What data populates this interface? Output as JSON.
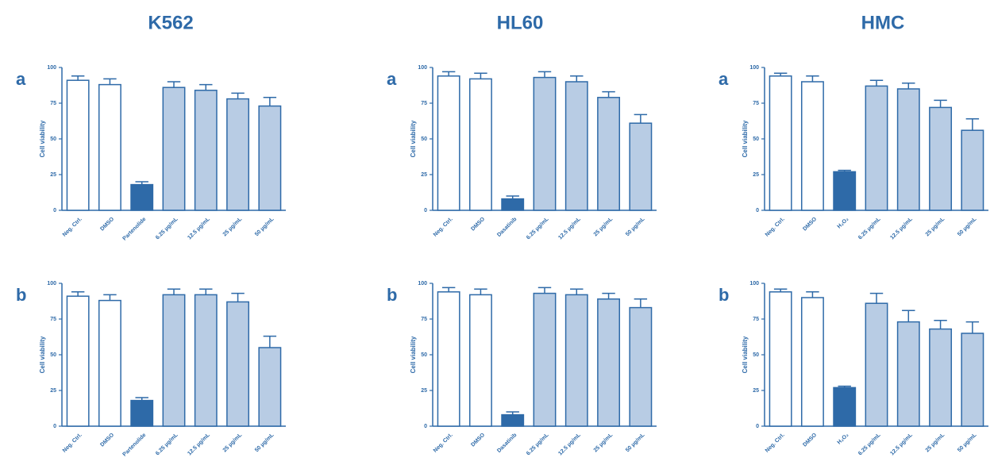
{
  "column_titles": [
    "K562",
    "HL60",
    "HMC"
  ],
  "chart_data": [
    {
      "type": "bar",
      "label": "a",
      "ylabel": "Cell viability",
      "categories": [
        "Neg. Ctrl.",
        "DMSO",
        "Partenolide",
        "6.25 µg/mL",
        "12.5 µg/mL",
        "25 µg/mL",
        "50 µg/mL"
      ],
      "values": [
        91,
        88,
        18,
        86,
        84,
        78,
        73
      ],
      "errors": [
        3,
        4,
        2,
        4,
        4,
        4,
        6
      ],
      "colors": [
        "#ffffff",
        "#ffffff",
        "#2e6aa8",
        "#b8cce4",
        "#b8cce4",
        "#b8cce4",
        "#b8cce4"
      ],
      "ylim": [
        0,
        100
      ],
      "yticks": [
        0,
        25,
        50,
        75,
        100
      ]
    },
    {
      "type": "bar",
      "label": "a",
      "ylabel": "Cell viability",
      "categories": [
        "Neg. Ctrl.",
        "DMSO",
        "Dasatinib",
        "6.25 µg/mL",
        "12.5 µg/mL",
        "25 µg/mL",
        "50 µg/mL"
      ],
      "values": [
        94,
        92,
        8,
        93,
        90,
        79,
        61
      ],
      "errors": [
        3,
        4,
        2,
        4,
        4,
        4,
        6
      ],
      "colors": [
        "#ffffff",
        "#ffffff",
        "#2e6aa8",
        "#b8cce4",
        "#b8cce4",
        "#b8cce4",
        "#b8cce4"
      ],
      "ylim": [
        0,
        100
      ],
      "yticks": [
        0,
        25,
        50,
        75,
        100
      ]
    },
    {
      "type": "bar",
      "label": "a",
      "ylabel": "Cell viability",
      "categories": [
        "Neg. Ctrl.",
        "DMSO",
        "H₂O₂",
        "6.25 µg/mL",
        "12.5 µg/mL",
        "25 µg/mL",
        "50 µg/mL"
      ],
      "values": [
        94,
        90,
        27,
        87,
        85,
        72,
        56
      ],
      "errors": [
        2,
        4,
        1,
        4,
        4,
        5,
        8
      ],
      "colors": [
        "#ffffff",
        "#ffffff",
        "#2e6aa8",
        "#b8cce4",
        "#b8cce4",
        "#b8cce4",
        "#b8cce4"
      ],
      "ylim": [
        0,
        100
      ],
      "yticks": [
        0,
        25,
        50,
        75,
        100
      ]
    },
    {
      "type": "bar",
      "label": "b",
      "ylabel": "Cell viability",
      "categories": [
        "Neg. Ctrl.",
        "DMSO",
        "Partenolide",
        "6.25 µg/mL",
        "12.5 µg/mL",
        "25 µg/mL",
        "50 µg/mL"
      ],
      "values": [
        91,
        88,
        18,
        92,
        92,
        87,
        55
      ],
      "errors": [
        3,
        4,
        2,
        4,
        4,
        6,
        8
      ],
      "colors": [
        "#ffffff",
        "#ffffff",
        "#2e6aa8",
        "#b8cce4",
        "#b8cce4",
        "#b8cce4",
        "#b8cce4"
      ],
      "ylim": [
        0,
        100
      ],
      "yticks": [
        0,
        25,
        50,
        75,
        100
      ]
    },
    {
      "type": "bar",
      "label": "b",
      "ylabel": "Cell viability",
      "categories": [
        "Neg. Ctrl.",
        "DMSO",
        "Dasatinib",
        "6.25 µg/mL",
        "12.5 µg/mL",
        "25 µg/mL",
        "50 µg/mL"
      ],
      "values": [
        94,
        92,
        8,
        93,
        92,
        89,
        83
      ],
      "errors": [
        3,
        4,
        2,
        4,
        4,
        4,
        6
      ],
      "colors": [
        "#ffffff",
        "#ffffff",
        "#2e6aa8",
        "#b8cce4",
        "#b8cce4",
        "#b8cce4",
        "#b8cce4"
      ],
      "ylim": [
        0,
        100
      ],
      "yticks": [
        0,
        25,
        50,
        75,
        100
      ]
    },
    {
      "type": "bar",
      "label": "b",
      "ylabel": "Cell viability",
      "categories": [
        "Neg. Ctrl.",
        "DMSO",
        "H₂O₂",
        "6.25 µg/mL",
        "12.5 µg/mL",
        "25 µg/mL",
        "50 µg/mL"
      ],
      "values": [
        94,
        90,
        27,
        86,
        73,
        68,
        65
      ],
      "errors": [
        2,
        4,
        1,
        7,
        8,
        6,
        8
      ],
      "colors": [
        "#ffffff",
        "#ffffff",
        "#2e6aa8",
        "#b8cce4",
        "#b8cce4",
        "#b8cce4",
        "#b8cce4"
      ],
      "ylim": [
        0,
        100
      ],
      "yticks": [
        0,
        25,
        50,
        75,
        100
      ]
    }
  ]
}
